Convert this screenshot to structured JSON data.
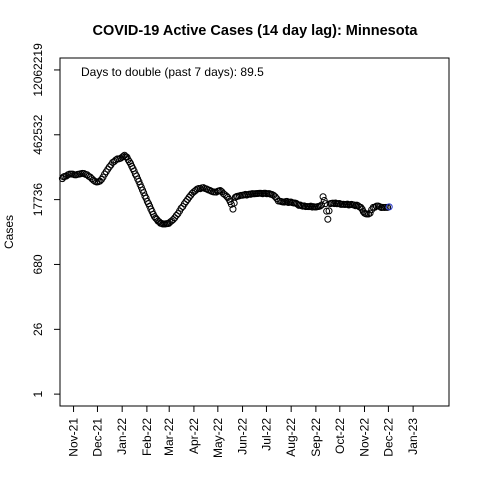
{
  "chart_data": {
    "type": "scatter",
    "title": "COVID-19 Active Cases (14 day lag): Minnesota",
    "ylabel": "Cases",
    "xlabel": "",
    "y_scale": "log",
    "annotation": "Days to double (past 7 days): 89.5",
    "y_ticks": [
      1,
      26,
      680,
      17736,
      462532,
      12062219
    ],
    "y_tick_labels": [
      "1",
      "26",
      "680",
      "17736",
      "462532",
      "12062219"
    ],
    "x_ticks": [
      "2021-11-01",
      "2021-12-01",
      "2022-01-01",
      "2022-02-01",
      "2022-03-01",
      "2022-04-01",
      "2022-05-01",
      "2022-06-01",
      "2022-07-01",
      "2022-08-01",
      "2022-09-01",
      "2022-10-01",
      "2022-11-01",
      "2022-12-01",
      "2023-01-01"
    ],
    "x_tick_labels": [
      "Nov-21",
      "Dec-21",
      "Jan-22",
      "Feb-22",
      "Mar-22",
      "Apr-22",
      "May-22",
      "Jun-22",
      "Jul-22",
      "Aug-22",
      "Sep-22",
      "Oct-22",
      "Nov-22",
      "Dec-22",
      "Jan-23"
    ],
    "xlim": [
      "2021-10-15",
      "2023-02-15"
    ],
    "ylim": [
      0.55,
      22000000
    ],
    "grid": false,
    "series": [
      {
        "color_stroke": "#000000",
        "last_point_color": "#2233cc",
        "marker": "open-circle",
        "points": [
          [
            "2021-10-18",
            51000
          ],
          [
            "2021-10-21",
            57000
          ],
          [
            "2021-10-25",
            62000
          ],
          [
            "2021-10-29",
            64000
          ],
          [
            "2021-11-02",
            62000
          ],
          [
            "2021-11-06",
            63000
          ],
          [
            "2021-11-10",
            65000
          ],
          [
            "2021-11-14",
            66000
          ],
          [
            "2021-11-18",
            62000
          ],
          [
            "2021-11-22",
            55000
          ],
          [
            "2021-11-26",
            47000
          ],
          [
            "2021-11-30",
            43000
          ],
          [
            "2021-12-04",
            45000
          ],
          [
            "2021-12-08",
            55000
          ],
          [
            "2021-12-12",
            72000
          ],
          [
            "2021-12-16",
            92000
          ],
          [
            "2021-12-20",
            115000
          ],
          [
            "2021-12-24",
            130000
          ],
          [
            "2021-12-28",
            138000
          ],
          [
            "2022-01-01",
            150000
          ],
          [
            "2022-01-04",
            165000
          ],
          [
            "2022-01-07",
            150000
          ],
          [
            "2022-01-10",
            120000
          ],
          [
            "2022-01-13",
            95000
          ],
          [
            "2022-01-16",
            75000
          ],
          [
            "2022-01-19",
            58000
          ],
          [
            "2022-01-22",
            44000
          ],
          [
            "2022-01-25",
            33000
          ],
          [
            "2022-01-28",
            25000
          ],
          [
            "2022-01-31",
            19000
          ],
          [
            "2022-02-03",
            14500
          ],
          [
            "2022-02-06",
            11000
          ],
          [
            "2022-02-09",
            8500
          ],
          [
            "2022-02-12",
            7000
          ],
          [
            "2022-02-15",
            6000
          ],
          [
            "2022-02-18",
            5400
          ],
          [
            "2022-02-21",
            5200
          ],
          [
            "2022-02-24",
            5200
          ],
          [
            "2022-02-27",
            5300
          ],
          [
            "2022-03-02",
            5700
          ],
          [
            "2022-03-06",
            6500
          ],
          [
            "2022-03-10",
            8000
          ],
          [
            "2022-03-14",
            10000
          ],
          [
            "2022-03-18",
            12500
          ],
          [
            "2022-03-22",
            16000
          ],
          [
            "2022-03-26",
            20000
          ],
          [
            "2022-03-30",
            24500
          ],
          [
            "2022-04-03",
            28000
          ],
          [
            "2022-04-07",
            31000
          ],
          [
            "2022-04-11",
            32000
          ],
          [
            "2022-04-15",
            31000
          ],
          [
            "2022-04-19",
            29000
          ],
          [
            "2022-04-23",
            27000
          ],
          [
            "2022-04-27",
            26000
          ],
          [
            "2022-05-01",
            27000
          ],
          [
            "2022-05-04",
            28000
          ],
          [
            "2022-05-08",
            24000
          ],
          [
            "2022-05-12",
            21000
          ],
          [
            "2022-05-15",
            18000
          ],
          [
            "2022-05-18",
            14000
          ],
          [
            "2022-05-20",
            11000
          ],
          [
            "2022-05-23",
            20000
          ],
          [
            "2022-05-26",
            21000
          ],
          [
            "2022-05-30",
            22000
          ],
          [
            "2022-06-03",
            22500
          ],
          [
            "2022-06-08",
            23000
          ],
          [
            "2022-06-13",
            24000
          ],
          [
            "2022-06-18",
            24000
          ],
          [
            "2022-06-23",
            24500
          ],
          [
            "2022-06-28",
            24500
          ],
          [
            "2022-07-03",
            24000
          ],
          [
            "2022-07-08",
            23000
          ],
          [
            "2022-07-12",
            20500
          ],
          [
            "2022-07-16",
            16500
          ],
          [
            "2022-07-20",
            16000
          ],
          [
            "2022-07-25",
            16000
          ],
          [
            "2022-07-30",
            15500
          ],
          [
            "2022-08-04",
            15000
          ],
          [
            "2022-08-09",
            14000
          ],
          [
            "2022-08-14",
            13000
          ],
          [
            "2022-08-19",
            12500
          ],
          [
            "2022-08-24",
            12500
          ],
          [
            "2022-08-29",
            12500
          ],
          [
            "2022-09-03",
            12500
          ],
          [
            "2022-09-08",
            13500
          ],
          [
            "2022-09-10",
            20500
          ],
          [
            "2022-09-13",
            14500
          ],
          [
            "2022-09-16",
            6600
          ],
          [
            "2022-09-19",
            14500
          ],
          [
            "2022-09-24",
            14500
          ],
          [
            "2022-09-29",
            14500
          ],
          [
            "2022-10-04",
            14000
          ],
          [
            "2022-10-09",
            14000
          ],
          [
            "2022-10-14",
            13800
          ],
          [
            "2022-10-19",
            13500
          ],
          [
            "2022-10-24",
            13000
          ],
          [
            "2022-10-29",
            11000
          ],
          [
            "2022-11-01",
            9000
          ],
          [
            "2022-11-04",
            8600
          ],
          [
            "2022-11-08",
            9000
          ],
          [
            "2022-11-12",
            12000
          ],
          [
            "2022-11-16",
            12800
          ],
          [
            "2022-11-20",
            12500
          ],
          [
            "2022-11-24",
            12000
          ],
          [
            "2022-11-28",
            12000
          ],
          [
            "2022-12-02",
            12300
          ]
        ]
      }
    ]
  }
}
